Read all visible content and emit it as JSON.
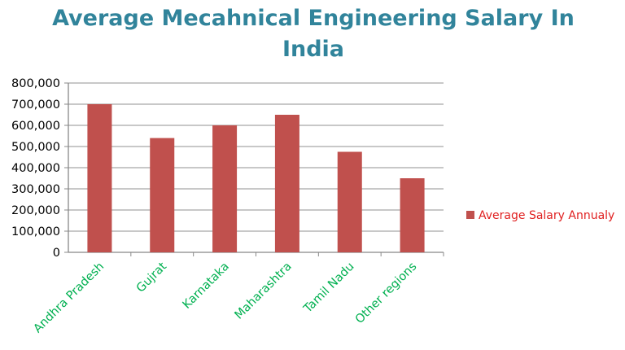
{
  "chart_data": {
    "type": "bar",
    "title": "Average Mecahnical Engineering Salary In India",
    "categories": [
      "Andhra Pradesh",
      "Gujrat",
      "Karnataka",
      "Maharashtra",
      "Tamil Nadu",
      "Other regions"
    ],
    "series": [
      {
        "name": "Average Salary Annualy",
        "values": [
          700000,
          540000,
          600000,
          650000,
          475000,
          350000
        ],
        "color": "#C0504D"
      }
    ],
    "ylim": [
      0,
      800000
    ],
    "yticks": [
      0,
      100000,
      200000,
      300000,
      400000,
      500000,
      600000,
      700000,
      800000
    ],
    "ytick_labels": [
      "0",
      "100,000",
      "200,000",
      "300,000",
      "400,000",
      "500,000",
      "600,000",
      "700,000",
      "800,000"
    ],
    "grid": true,
    "legend": "right",
    "colors": {
      "title": "#31849B",
      "category_labels": "#00B050",
      "legend_text": "#E02020"
    }
  }
}
